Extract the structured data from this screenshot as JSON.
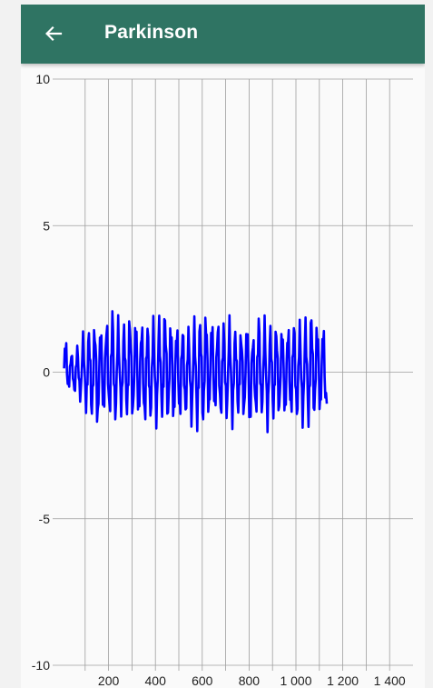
{
  "app_bar": {
    "title": "Parkinson",
    "back_icon": "arrow-left-icon",
    "background": "#2f7463"
  },
  "chart_data": {
    "type": "line",
    "title": "",
    "xlabel": "",
    "ylabel": "",
    "ylim": [
      -10,
      10
    ],
    "xlim": [
      0,
      1500
    ],
    "y_ticks": [
      10,
      5,
      0,
      -5,
      -10
    ],
    "x_tick_labels": [
      "200",
      "400",
      "600",
      "800",
      "1 000",
      "1 200",
      "1 400"
    ],
    "x_tick_values": [
      200,
      400,
      600,
      800,
      1000,
      1200,
      1400
    ],
    "grid": true,
    "line_color": "#0000ff",
    "series": [
      {
        "name": "",
        "period": 25,
        "peaks": [
          1.2,
          0.7,
          0.9,
          1.3,
          1.5,
          1.7,
          1.6,
          1.9,
          2.2,
          1.8,
          1.7,
          2.1,
          1.9,
          1.8,
          1.7,
          1.8,
          1.9,
          2.3,
          1.8,
          1.7,
          1.6,
          1.5,
          1.8,
          1.9,
          2.2,
          1.9,
          1.9,
          1.7,
          1.8,
          1.5,
          1.5,
          1.7,
          1.3,
          2.0,
          1.8,
          1.6,
          1.7,
          1.6,
          1.7,
          1.8,
          1.7,
          1.8,
          2.2,
          1.8,
          1.7
        ],
        "troughs": [
          -0.6,
          -0.8,
          -1.0,
          -1.3,
          -1.6,
          -2.0,
          -1.5,
          -1.6,
          -1.7,
          -1.4,
          -1.5,
          -1.7,
          -1.6,
          -1.9,
          -1.7,
          -1.8,
          -1.5,
          -1.8,
          -1.8,
          -1.7,
          -1.6,
          -1.8,
          -1.9,
          -1.9,
          -1.6,
          -1.4,
          -1.7,
          -1.6,
          -1.8,
          -1.5,
          -1.7,
          -2.0,
          -1.6,
          -1.5,
          -1.9,
          -1.6,
          -1.6,
          -1.6,
          -1.6,
          -1.7,
          -1.8,
          -1.8,
          -1.6,
          -1.5,
          -1.3
        ]
      }
    ]
  }
}
